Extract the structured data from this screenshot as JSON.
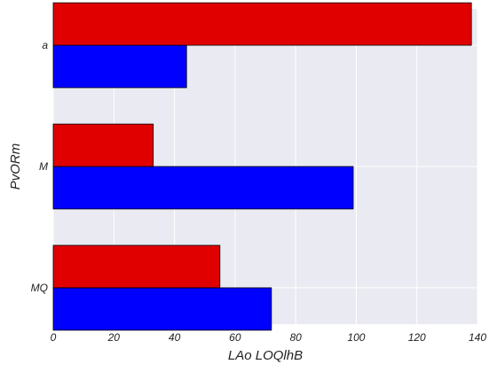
{
  "chart_data": {
    "type": "bar",
    "orientation": "horizontal",
    "title": "",
    "xlabel": "LAo LOQlhB",
    "ylabel": "PvORm",
    "categories": [
      "MQ",
      "M",
      "a"
    ],
    "series": [
      {
        "values": [
          72,
          99,
          44
        ],
        "color": "#0000ff"
      },
      {
        "values": [
          55,
          33,
          138
        ],
        "color": "#e00000"
      }
    ],
    "xlim": [
      0,
      140
    ],
    "xticks": [
      0,
      20,
      40,
      60,
      80,
      100,
      120,
      140
    ],
    "grid": true,
    "legend": "none",
    "background_color": "#eaeaf2",
    "grid_color": "#ffffff"
  }
}
